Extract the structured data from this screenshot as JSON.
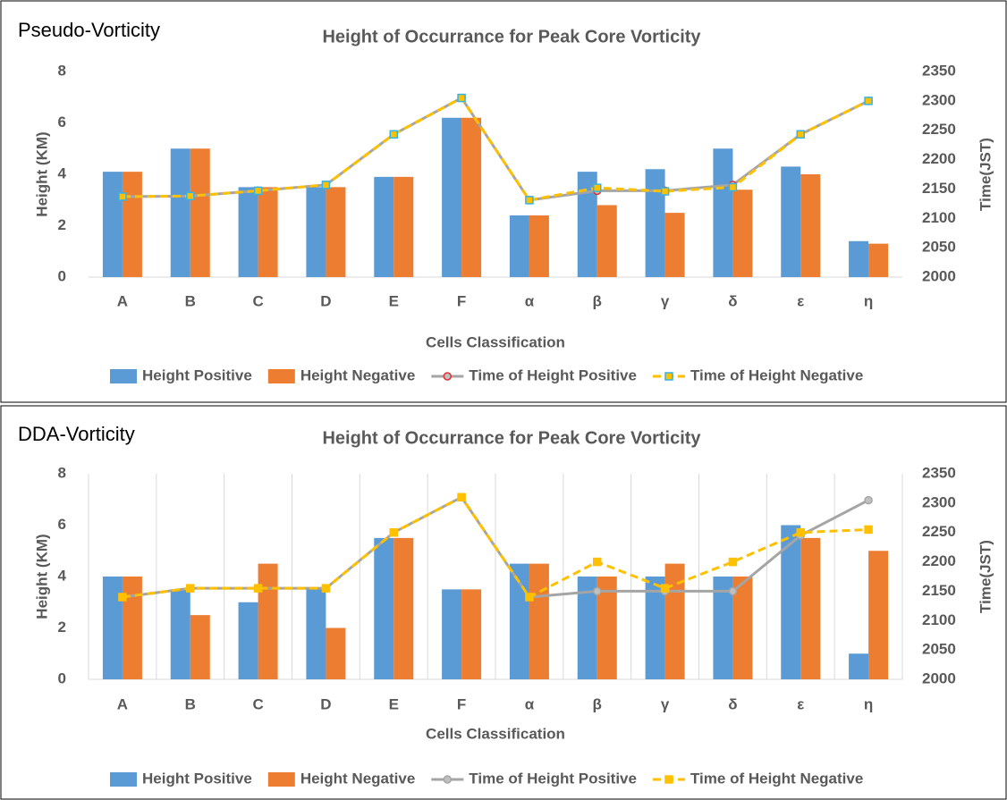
{
  "chart_data": [
    {
      "type": "bar",
      "panel_label": "Pseudo-Vorticity",
      "title": "Height of Occurrance for Peak Core Vorticity",
      "x_label": "Cells Classification",
      "y_label": "Height (KM)",
      "y2_label": "Time(JST)",
      "categories": [
        "A",
        "B",
        "C",
        "D",
        "E",
        "F",
        "α",
        "β",
        "γ",
        "δ",
        "ε",
        "η"
      ],
      "ylim": [
        0,
        8
      ],
      "yticks": [
        0,
        2,
        4,
        6,
        8
      ],
      "y2lim": [
        2000,
        2350
      ],
      "y2ticks": [
        2000,
        2050,
        2100,
        2150,
        2200,
        2250,
        2300,
        2350
      ],
      "grid": "none",
      "series": [
        {
          "name": "Height Positive",
          "type": "bar",
          "color": "#5b9bd5",
          "values": [
            4.1,
            5.0,
            3.5,
            3.5,
            3.9,
            6.2,
            2.4,
            4.1,
            4.2,
            5.0,
            4.3,
            1.4
          ]
        },
        {
          "name": "Height Negative",
          "type": "bar",
          "color": "#ed7d31",
          "values": [
            4.1,
            5.0,
            3.5,
            3.5,
            3.9,
            6.2,
            2.4,
            2.8,
            2.5,
            3.4,
            4.0,
            1.3
          ]
        },
        {
          "name": "Time of Height Positive",
          "type": "line",
          "axis": "y2",
          "color": "#a5a5a5",
          "style": "solid",
          "marker": "circle",
          "marker_edge": "#e03030",
          "values": [
            2137,
            2138,
            2147,
            2157,
            2243,
            2305,
            2131,
            2147,
            2147,
            2157,
            2243,
            2300
          ]
        },
        {
          "name": "Time of Height Negative",
          "type": "line",
          "axis": "y2",
          "color": "#ffc000",
          "style": "dashed",
          "marker": "square",
          "marker_edge": "#33b5e5",
          "values": [
            2137,
            2138,
            2147,
            2157,
            2243,
            2305,
            2131,
            2152,
            2146,
            2153,
            2243,
            2300
          ]
        }
      ]
    },
    {
      "type": "bar",
      "panel_label": "DDA-Vorticity",
      "title": "Height of Occurrance for Peak Core Vorticity",
      "x_label": "Cells Classification",
      "y_label": "Height (KM)",
      "y2_label": "Time(JST)",
      "categories": [
        "A",
        "B",
        "C",
        "D",
        "E",
        "F",
        "α",
        "β",
        "γ",
        "δ",
        "ε",
        "η"
      ],
      "ylim": [
        0,
        8
      ],
      "yticks": [
        0,
        2,
        4,
        6,
        8
      ],
      "y2lim": [
        2000,
        2350
      ],
      "y2ticks": [
        2000,
        2050,
        2100,
        2150,
        2200,
        2250,
        2300,
        2350
      ],
      "grid": "x",
      "series": [
        {
          "name": "Height Positive",
          "type": "bar",
          "color": "#5b9bd5",
          "values": [
            4,
            3.5,
            3,
            3.5,
            5.5,
            3.5,
            4.5,
            4,
            4,
            4,
            6,
            1
          ]
        },
        {
          "name": "Height Negative",
          "type": "bar",
          "color": "#ed7d31",
          "values": [
            4,
            2.5,
            4.5,
            2,
            5.5,
            3.5,
            4.5,
            4,
            4.5,
            4,
            5.5,
            5
          ]
        },
        {
          "name": "Time of Height Positive",
          "type": "line",
          "axis": "y2",
          "color": "#a5a5a5",
          "style": "solid",
          "marker": "circle",
          "marker_edge": "#a5a5a5",
          "values": [
            2140,
            2155,
            2155,
            2155,
            2250,
            2310,
            2140,
            2150,
            2150,
            2150,
            2245,
            2305
          ]
        },
        {
          "name": "Time of Height Negative",
          "type": "line",
          "axis": "y2",
          "color": "#ffc000",
          "style": "dashed",
          "marker": "square",
          "marker_edge": "#ffc000",
          "values": [
            2140,
            2155,
            2155,
            2155,
            2250,
            2310,
            2140,
            2200,
            2155,
            2200,
            2250,
            2255
          ]
        }
      ]
    }
  ]
}
